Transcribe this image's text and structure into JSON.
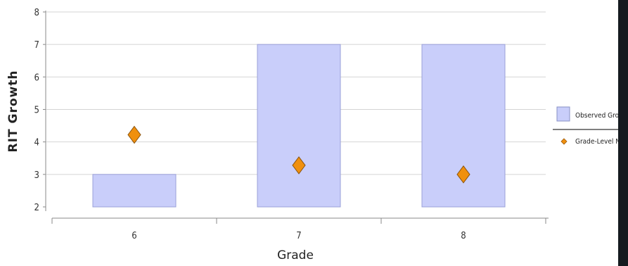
{
  "chart_data": {
    "type": "bar",
    "categories": [
      "6",
      "7",
      "8"
    ],
    "series": [
      {
        "name": "Observed Gro",
        "kind": "bar",
        "values": [
          3,
          7,
          7
        ],
        "base": 2,
        "color": "#c9cefa"
      },
      {
        "name": "Grade-Level N",
        "kind": "marker",
        "marker": "diamond",
        "values": [
          4.22,
          3.28,
          3.0
        ],
        "color": "#f0900e"
      }
    ],
    "xlabel": "Grade",
    "ylabel": "RIT Growth",
    "ylim": [
      2,
      8
    ],
    "yticks": [
      2,
      3,
      4,
      5,
      6,
      7,
      8
    ],
    "grid": true,
    "legend": "right"
  }
}
